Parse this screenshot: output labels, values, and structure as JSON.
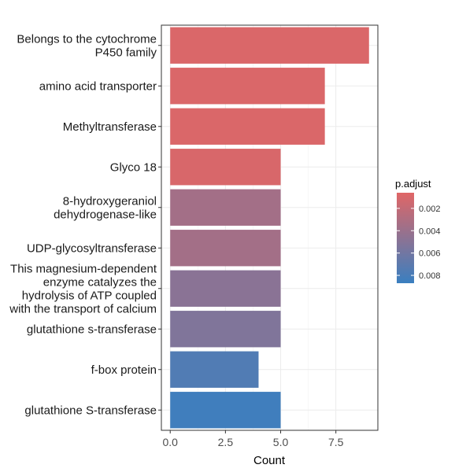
{
  "chart_data": {
    "type": "bar",
    "orientation": "horizontal",
    "xlabel": "Count",
    "ylabel": "",
    "xlim": [
      -0.4,
      9.4
    ],
    "x_ticks": [
      0.0,
      2.5,
      5.0,
      7.5
    ],
    "x_tick_labels": [
      "0.0",
      "2.5",
      "5.0",
      "7.5"
    ],
    "grid": true,
    "categories": [
      "Belongs to the cytochrome\nP450 family",
      "amino acid transporter",
      "Methyltransferase",
      "Glyco 18",
      "8-hydroxygeraniol\ndehydrogenase-like",
      "UDP-glycosyltransferase",
      "This magnesium-dependent\nenzyme catalyzes the\nhydrolysis of ATP coupled\nwith the transport of calcium",
      "glutathione s-transferase",
      "f-box protein",
      "glutathione S-transferase"
    ],
    "values": [
      9,
      7,
      7,
      5,
      5,
      5,
      5,
      5,
      4,
      5
    ],
    "p_adjust": [
      0.0009,
      0.0009,
      0.0009,
      0.001,
      0.0036,
      0.0036,
      0.0048,
      0.0053,
      0.0076,
      0.0084
    ],
    "legend": {
      "title": "p.adjust",
      "position": "right",
      "range": [
        0.0006,
        0.0087
      ],
      "ticks": [
        0.002,
        0.004,
        0.006,
        0.008
      ],
      "tick_labels": [
        "0.002",
        "0.004",
        "0.006",
        "0.008"
      ],
      "color_low": "#e06666",
      "color_high": "#3a7fc0"
    }
  }
}
